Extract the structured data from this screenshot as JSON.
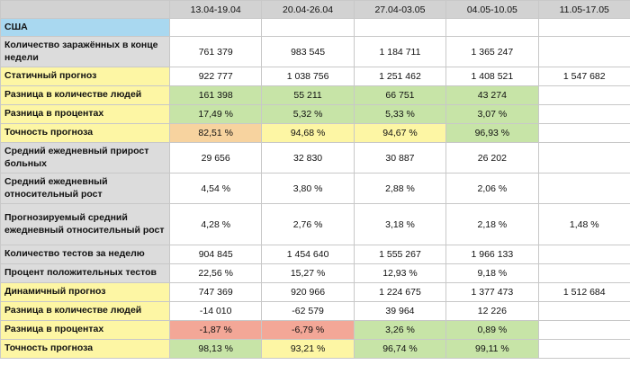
{
  "columns": [
    "13.04-19.04",
    "20.04-26.04",
    "27.04-03.05",
    "04.05-10.05",
    "11.05-17.05"
  ],
  "colors": {
    "header": "#d2d2d2",
    "country": "#a9d8f0",
    "gray": "#dcdcdc",
    "yellow": "#fdf6a4",
    "green": "#c7e4a7",
    "orange": "#f7d39f",
    "red": "#f3a797"
  },
  "rows": [
    {
      "label": "США",
      "label_bg": "country",
      "height": 20,
      "cells": [
        {
          "v": "",
          "bg": "g"
        },
        {
          "v": "",
          "bg": "g"
        },
        {
          "v": "",
          "bg": "g"
        },
        {
          "v": "",
          "bg": "g"
        },
        {
          "v": "",
          "bg": "g"
        }
      ]
    },
    {
      "label": "Количество заражённых в конце недели",
      "label_bg": "gray",
      "height": 34,
      "cells": [
        {
          "v": "761 379",
          "bg": "g"
        },
        {
          "v": "983 545",
          "bg": "g"
        },
        {
          "v": "1 184 711",
          "bg": "g"
        },
        {
          "v": "1 365 247",
          "bg": "g"
        },
        {
          "v": "",
          "bg": "g"
        }
      ]
    },
    {
      "label": "Статичный прогноз",
      "label_bg": "yellow",
      "height": 21,
      "cells": [
        {
          "v": "922 777",
          "bg": "g"
        },
        {
          "v": "1 038 756",
          "bg": "g"
        },
        {
          "v": "1 251 462",
          "bg": "g"
        },
        {
          "v": "1 408 521",
          "bg": "g"
        },
        {
          "v": "1 547 682",
          "bg": "g"
        }
      ]
    },
    {
      "label": "Разница в количестве людей",
      "label_bg": "yellow",
      "height": 21,
      "cells": [
        {
          "v": "161 398",
          "bg": "green"
        },
        {
          "v": "55 211",
          "bg": "green"
        },
        {
          "v": "66 751",
          "bg": "green"
        },
        {
          "v": "43 274",
          "bg": "green"
        },
        {
          "v": "",
          "bg": "g"
        }
      ]
    },
    {
      "label": "Разница в процентах",
      "label_bg": "yellow",
      "height": 21,
      "cells": [
        {
          "v": "17,49 %",
          "bg": "green"
        },
        {
          "v": "5,32 %",
          "bg": "green"
        },
        {
          "v": "5,33 %",
          "bg": "green"
        },
        {
          "v": "3,07 %",
          "bg": "green"
        },
        {
          "v": "",
          "bg": "g"
        }
      ]
    },
    {
      "label": "Точность прогноза",
      "label_bg": "yellow",
      "height": 21,
      "cells": [
        {
          "v": "82,51 %",
          "bg": "orange"
        },
        {
          "v": "94,68 %",
          "bg": "yellow"
        },
        {
          "v": "94,67 %",
          "bg": "yellow"
        },
        {
          "v": "96,93 %",
          "bg": "green"
        },
        {
          "v": "",
          "bg": "g"
        }
      ]
    },
    {
      "label": "Средний ежедневный прирост больных",
      "label_bg": "gray",
      "height": 34,
      "cells": [
        {
          "v": "29 656",
          "bg": "g"
        },
        {
          "v": "32 830",
          "bg": "g"
        },
        {
          "v": "30 887",
          "bg": "g"
        },
        {
          "v": "26 202",
          "bg": "g"
        },
        {
          "v": "",
          "bg": "g"
        }
      ]
    },
    {
      "label": "Средний ежедневный относительный рост",
      "label_bg": "gray",
      "height": 34,
      "cells": [
        {
          "v": "4,54 %",
          "bg": "g"
        },
        {
          "v": "3,80 %",
          "bg": "g"
        },
        {
          "v": "2,88 %",
          "bg": "g"
        },
        {
          "v": "2,06 %",
          "bg": "g"
        },
        {
          "v": "",
          "bg": "g"
        }
      ]
    },
    {
      "label": "Прогнозируемый средний ежедневный  относительный рост",
      "label_bg": "gray",
      "height": 46,
      "cells": [
        {
          "v": "4,28 %",
          "bg": "g"
        },
        {
          "v": "2,76 %",
          "bg": "g"
        },
        {
          "v": "3,18 %",
          "bg": "g"
        },
        {
          "v": "2,18 %",
          "bg": "g"
        },
        {
          "v": "1,48 %",
          "bg": "g"
        }
      ]
    },
    {
      "label": "Количество тестов за неделю",
      "label_bg": "gray",
      "height": 21,
      "cells": [
        {
          "v": "904 845",
          "bg": "g"
        },
        {
          "v": "1 454 640",
          "bg": "g"
        },
        {
          "v": "1 555 267",
          "bg": "g"
        },
        {
          "v": "1 966 133",
          "bg": "g"
        },
        {
          "v": "",
          "bg": "g"
        }
      ]
    },
    {
      "label": "Процент положительных тестов",
      "label_bg": "gray",
      "height": 21,
      "cells": [
        {
          "v": "22,56 %",
          "bg": "g"
        },
        {
          "v": "15,27 %",
          "bg": "g"
        },
        {
          "v": "12,93 %",
          "bg": "g"
        },
        {
          "v": "9,18 %",
          "bg": "g"
        },
        {
          "v": "",
          "bg": "g"
        }
      ]
    },
    {
      "label": "Динамичный прогноз",
      "label_bg": "yellow",
      "height": 21,
      "cells": [
        {
          "v": "747 369",
          "bg": "g"
        },
        {
          "v": "920 966",
          "bg": "g"
        },
        {
          "v": "1 224 675",
          "bg": "g"
        },
        {
          "v": "1 377 473",
          "bg": "g"
        },
        {
          "v": "1 512 684",
          "bg": "g"
        }
      ]
    },
    {
      "label": "Разница в количестве людей",
      "label_bg": "yellow",
      "height": 21,
      "cells": [
        {
          "v": "-14 010",
          "bg": "g"
        },
        {
          "v": "-62 579",
          "bg": "g"
        },
        {
          "v": "39 964",
          "bg": "g"
        },
        {
          "v": "12 226",
          "bg": "g"
        },
        {
          "v": "",
          "bg": "g"
        }
      ]
    },
    {
      "label": "Разница в процентах",
      "label_bg": "yellow",
      "height": 21,
      "cells": [
        {
          "v": "-1,87 %",
          "bg": "red"
        },
        {
          "v": "-6,79 %",
          "bg": "red"
        },
        {
          "v": "3,26 %",
          "bg": "green"
        },
        {
          "v": "0,89 %",
          "bg": "green"
        },
        {
          "v": "",
          "bg": "g"
        }
      ]
    },
    {
      "label": "Точность прогноза",
      "label_bg": "yellow",
      "height": 21,
      "cells": [
        {
          "v": "98,13 %",
          "bg": "green"
        },
        {
          "v": "93,21 %",
          "bg": "yellow"
        },
        {
          "v": "96,74 %",
          "bg": "green"
        },
        {
          "v": "99,11 %",
          "bg": "green"
        },
        {
          "v": "",
          "bg": "g"
        }
      ]
    }
  ]
}
